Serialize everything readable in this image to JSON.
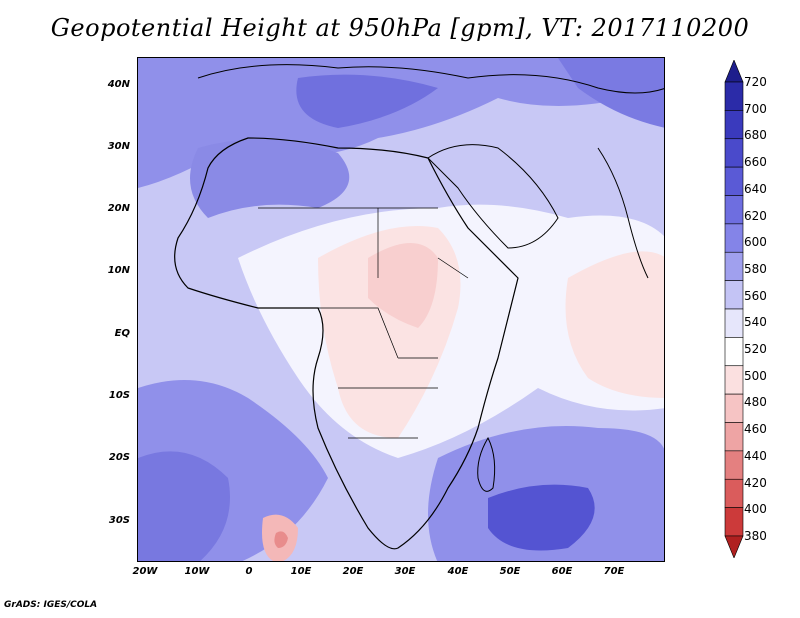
{
  "title": "Geopotential Height at 950hPa [gpm], VT: 2017110200",
  "credit": "GrADS: IGES/COLA",
  "axes": {
    "lat_labels": [
      "40N",
      "30N",
      "20N",
      "10N",
      "EQ",
      "10S",
      "20S",
      "30S"
    ],
    "lon_labels": [
      "20W",
      "10W",
      "0",
      "10E",
      "20E",
      "30E",
      "40E",
      "50E",
      "60E",
      "70E"
    ]
  },
  "colorbar": {
    "levels": [
      "720",
      "700",
      "680",
      "660",
      "640",
      "620",
      "600",
      "580",
      "560",
      "540",
      "520",
      "500",
      "480",
      "460",
      "440",
      "420",
      "400",
      "380"
    ],
    "colors": [
      "#1e1e8c",
      "#2b2ba8",
      "#3a3abd",
      "#4a4acb",
      "#5a5ad6",
      "#6e6ee0",
      "#8484e8",
      "#a0a0ee",
      "#c4c4f5",
      "#e6e6fb",
      "#ffffff",
      "#fbe0e0",
      "#f6c4c4",
      "#eea4a4",
      "#e48080",
      "#da5c5c",
      "#cc3a3a",
      "#b02020"
    ]
  },
  "map": {
    "region": "Africa and Middle East",
    "lon_range": [
      -22,
      80
    ],
    "lat_range": [
      -37,
      45
    ],
    "field": "geopotential height 950hPa"
  }
}
